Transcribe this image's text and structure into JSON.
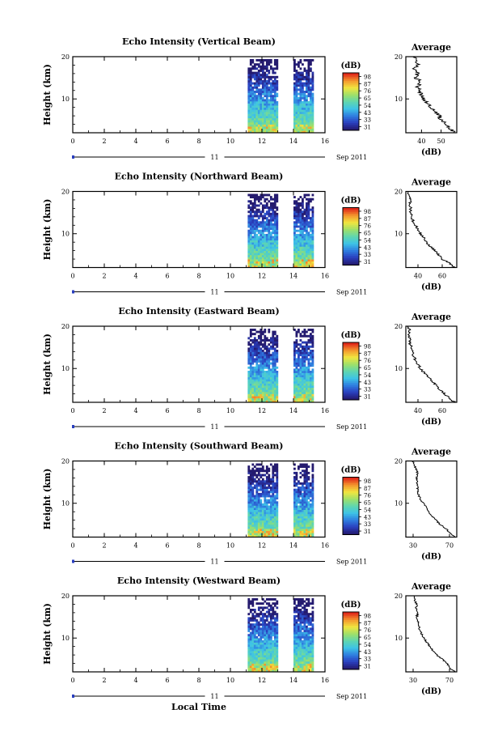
{
  "xlabel": "Local Time",
  "colorbar": {
    "unit": "(dB)",
    "ticks": [
      "31",
      "33",
      "43",
      "54",
      "65",
      "76",
      "87",
      "98"
    ],
    "range": [
      21,
      98
    ],
    "colors": [
      "#241a6e",
      "#2a3fbf",
      "#2f7fe0",
      "#3ec3e6",
      "#5fd6b0",
      "#9ee06a",
      "#f0e640",
      "#f59a2e",
      "#e02a1a"
    ]
  },
  "chart_data": [
    {
      "type": "heatmap",
      "title": "Echo Intensity (Vertical Beam)",
      "ylabel": "Height (km)",
      "xlim": [
        0,
        16
      ],
      "ylim": [
        2,
        20
      ],
      "xticks": [
        "0",
        "2",
        "4",
        "6",
        "8",
        "10",
        "12",
        "14",
        "16"
      ],
      "yticks": [
        "10",
        "20"
      ],
      "date_label": "11",
      "month_label": "Sep 2011",
      "data_blocks": [
        [
          11.1,
          12.9
        ],
        [
          14.0,
          15.2
        ]
      ],
      "average": {
        "title": "Average",
        "xlabel": "(dB)",
        "xticks": [
          "40",
          "50"
        ],
        "xlim": [
          32,
          58
        ],
        "height": [
          2,
          3,
          4,
          5,
          6,
          7,
          8,
          9,
          10,
          11,
          12,
          13,
          14,
          15,
          16,
          17,
          18,
          19,
          20
        ],
        "values": [
          57,
          54,
          53,
          50,
          49,
          47,
          45,
          43,
          41,
          40,
          39,
          38,
          40,
          37,
          38,
          36,
          38,
          37,
          37
        ]
      }
    },
    {
      "type": "heatmap",
      "title": "Echo Intensity (Northward Beam)",
      "ylabel": "Height (km)",
      "xlim": [
        0,
        16
      ],
      "ylim": [
        2,
        20
      ],
      "xticks": [
        "0",
        "2",
        "4",
        "6",
        "8",
        "10",
        "12",
        "14",
        "16"
      ],
      "yticks": [
        "10",
        "20"
      ],
      "date_label": "11",
      "month_label": "Sep 2011",
      "data_blocks": [
        [
          11.1,
          12.9
        ],
        [
          14.0,
          15.2
        ]
      ],
      "average": {
        "title": "Average",
        "xlabel": "(dB)",
        "xticks": [
          "40",
          "60"
        ],
        "xlim": [
          30,
          72
        ],
        "height": [
          2,
          3,
          4,
          5,
          6,
          7,
          8,
          9,
          10,
          11,
          12,
          13,
          14,
          15,
          16,
          17,
          18,
          19,
          20
        ],
        "values": [
          70,
          66,
          60,
          57,
          54,
          50,
          47,
          45,
          42,
          40,
          38,
          36,
          35,
          34,
          34,
          33,
          34,
          32,
          32
        ]
      }
    },
    {
      "type": "heatmap",
      "title": "Echo Intensity (Eastward Beam)",
      "ylabel": "Height (km)",
      "xlim": [
        0,
        16
      ],
      "ylim": [
        2,
        20
      ],
      "xticks": [
        "0",
        "2",
        "4",
        "6",
        "8",
        "10",
        "12",
        "14",
        "16"
      ],
      "yticks": [
        "10",
        "20"
      ],
      "date_label": "11",
      "month_label": "Sep 2011",
      "data_blocks": [
        [
          11.1,
          12.9
        ],
        [
          14.0,
          15.2
        ]
      ],
      "average": {
        "title": "Average",
        "xlabel": "(dB)",
        "xticks": [
          "40",
          "60"
        ],
        "xlim": [
          30,
          72
        ],
        "height": [
          2,
          3,
          4,
          5,
          6,
          7,
          8,
          9,
          10,
          11,
          12,
          13,
          14,
          15,
          16,
          17,
          18,
          19,
          20
        ],
        "values": [
          70,
          66,
          62,
          58,
          55,
          52,
          48,
          45,
          42,
          40,
          38,
          36,
          36,
          35,
          33,
          34,
          32,
          33,
          32
        ]
      }
    },
    {
      "type": "heatmap",
      "title": "Echo Intensity (Southward Beam)",
      "ylabel": "Height (km)",
      "xlim": [
        0,
        16
      ],
      "ylim": [
        2,
        20
      ],
      "xticks": [
        "0",
        "2",
        "4",
        "6",
        "8",
        "10",
        "12",
        "14",
        "16"
      ],
      "yticks": [
        "10",
        "20"
      ],
      "date_label": "11",
      "month_label": "Sep 2011",
      "data_blocks": [
        [
          11.1,
          12.9
        ],
        [
          14.0,
          15.2
        ]
      ],
      "average": {
        "title": "Average",
        "xlabel": "(dB)",
        "xticks": [
          "30",
          "70"
        ],
        "xlim": [
          22,
          78
        ],
        "height": [
          2,
          3,
          4,
          5,
          6,
          7,
          8,
          9,
          10,
          11,
          12,
          13,
          14,
          15,
          16,
          17,
          18,
          19,
          20
        ],
        "values": [
          76,
          70,
          66,
          60,
          55,
          50,
          47,
          45,
          41,
          38,
          36,
          35,
          35,
          34,
          34,
          35,
          33,
          32,
          30
        ]
      }
    },
    {
      "type": "heatmap",
      "title": "Echo Intensity (Westward Beam)",
      "ylabel": "Height (km)",
      "xlim": [
        0,
        16
      ],
      "ylim": [
        2,
        20
      ],
      "xticks": [
        "0",
        "2",
        "4",
        "6",
        "8",
        "10",
        "12",
        "14",
        "16"
      ],
      "yticks": [
        "10",
        "20"
      ],
      "date_label": "11",
      "month_label": "Sep 2011",
      "data_blocks": [
        [
          11.1,
          12.9
        ],
        [
          14.0,
          15.2
        ]
      ],
      "average": {
        "title": "Average",
        "xlabel": "(dB)",
        "xticks": [
          "30",
          "70"
        ],
        "xlim": [
          22,
          78
        ],
        "height": [
          2,
          3,
          4,
          5,
          6,
          7,
          8,
          9,
          10,
          11,
          12,
          13,
          14,
          15,
          16,
          17,
          18,
          19,
          20
        ],
        "values": [
          76,
          70,
          67,
          62,
          56,
          52,
          48,
          45,
          42,
          39,
          37,
          36,
          35,
          34,
          35,
          33,
          34,
          32,
          31
        ]
      }
    }
  ]
}
